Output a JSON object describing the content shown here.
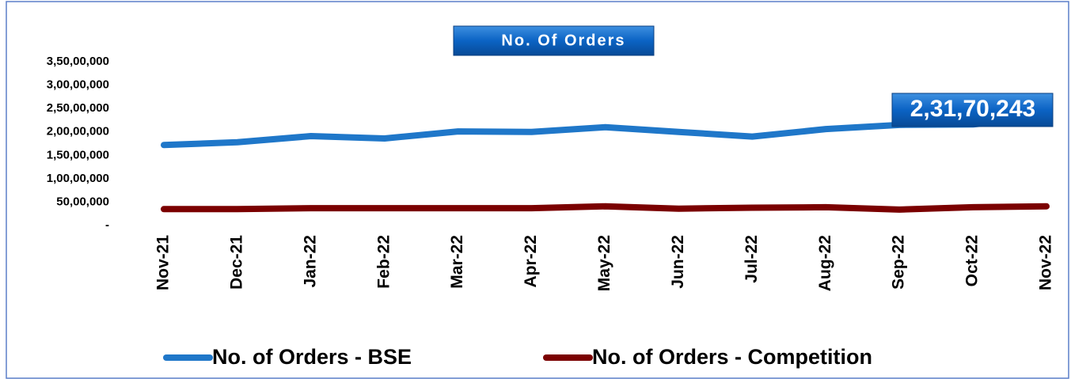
{
  "chart_data": {
    "type": "line",
    "title": "No. Of Orders",
    "categories": [
      "Nov-21",
      "Dec-21",
      "Jan-22",
      "Feb-22",
      "Mar-22",
      "Apr-22",
      "May-22",
      "Jun-22",
      "Jul-22",
      "Aug-22",
      "Sep-22",
      "Oct-22",
      "Nov-22"
    ],
    "series": [
      {
        "name": "No. of Orders - BSE",
        "color": "#1f77c9",
        "values": [
          17200000,
          17800000,
          19100000,
          18600000,
          20100000,
          20000000,
          21000000,
          20000000,
          19000000,
          20600000,
          21500000,
          21600000,
          23170243
        ],
        "value_labels": [
          null,
          null,
          null,
          null,
          null,
          null,
          null,
          null,
          null,
          null,
          null,
          null,
          "2,31,70,243"
        ]
      },
      {
        "name": "No. of Orders - Competition",
        "color": "#7b0000",
        "values": [
          3500000,
          3500000,
          3700000,
          3700000,
          3700000,
          3700000,
          4100000,
          3600000,
          3800000,
          3900000,
          3400000,
          3900000,
          4100000
        ]
      }
    ],
    "ylim": [
      0,
      35000000
    ],
    "yticks": [
      {
        "value": 0,
        "label": "-"
      },
      {
        "value": 5000000,
        "label": "50,00,000"
      },
      {
        "value": 10000000,
        "label": "1,00,00,000"
      },
      {
        "value": 15000000,
        "label": "1,50,00,000"
      },
      {
        "value": 20000000,
        "label": "2,00,00,000"
      },
      {
        "value": 25000000,
        "label": "2,50,00,000"
      },
      {
        "value": 30000000,
        "label": "3,00,00,000"
      },
      {
        "value": 35000000,
        "label": "3,50,00,000"
      }
    ],
    "grid": false
  }
}
